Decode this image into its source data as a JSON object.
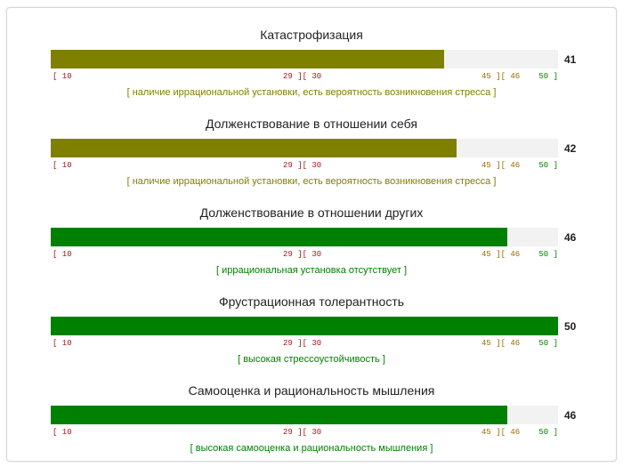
{
  "colors": {
    "olive": "#808000",
    "green": "#008000",
    "red": "#a31515",
    "orange": "#9a6a00",
    "track": "#f2f2f2"
  },
  "scale": {
    "min": 10,
    "max": 50,
    "labels": {
      "low": "[ 10",
      "b1": "29 ][ 30",
      "b2": "45 ][ 46",
      "high": "50 ]"
    }
  },
  "scales": [
    {
      "title": "Катастрофизация",
      "value": 41,
      "score": "41",
      "fill_color": "#808000",
      "note": "[ наличие иррациональной установки, есть вероятность возникновения стресса ]",
      "note_color": "#808000"
    },
    {
      "title": "Долженствование в отношении себя",
      "value": 42,
      "score": "42",
      "fill_color": "#808000",
      "note": "[ наличие иррациональной установки, есть вероятность возникновения стресса ]",
      "note_color": "#808000"
    },
    {
      "title": "Долженствование в отношении других",
      "value": 46,
      "score": "46",
      "fill_color": "#008000",
      "note": "[ иррациональная установка отсутствует ]",
      "note_color": "#008000"
    },
    {
      "title": "Фрустрационная толерантность",
      "value": 50,
      "score": "50",
      "fill_color": "#008000",
      "note": "[ высокая стрессоустойчивость ]",
      "note_color": "#008000"
    },
    {
      "title": "Самооценка и рациональность мышления",
      "value": 46,
      "score": "46",
      "fill_color": "#008000",
      "note": "[ высокая самооценка и рациональность мышления ]",
      "note_color": "#008000"
    }
  ]
}
